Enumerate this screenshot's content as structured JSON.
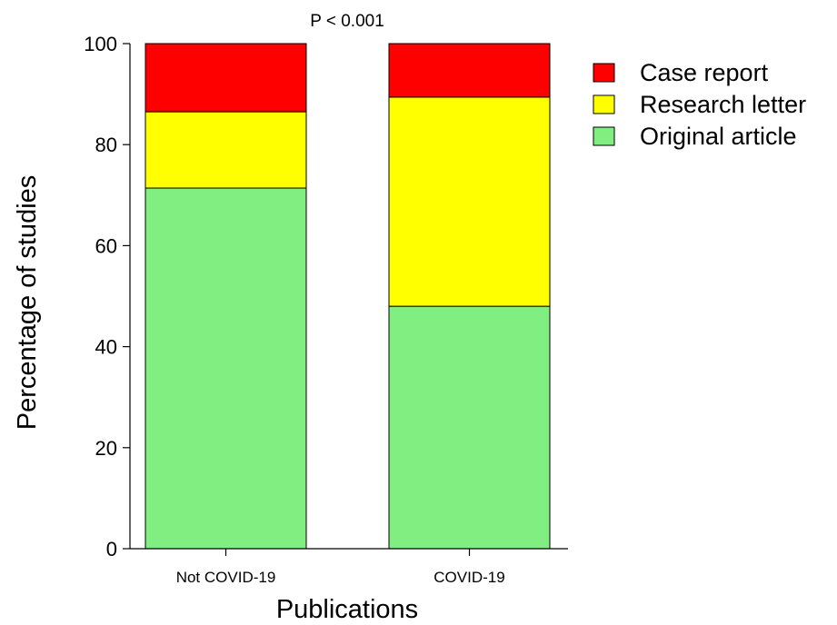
{
  "chart_data": {
    "type": "bar",
    "stacked": true,
    "title": "",
    "annotation": "P < 0.001",
    "xlabel": "Publications",
    "ylabel": "Percentage of studies",
    "ylim": [
      0,
      100
    ],
    "yticks": [
      0,
      20,
      40,
      60,
      80,
      100
    ],
    "grid": false,
    "legend_position": "top-right",
    "categories": [
      "Not COVID-19",
      "COVID-19"
    ],
    "series": [
      {
        "name": "Original article",
        "color": "#80ee80",
        "values": [
          71.4,
          48.0
        ]
      },
      {
        "name": "Research letter",
        "color": "#ffff00",
        "values": [
          15.1,
          41.4
        ]
      },
      {
        "name": "Case report",
        "color": "#ff0000",
        "values": [
          13.5,
          10.6
        ]
      }
    ],
    "legend_order": [
      "Case report",
      "Research letter",
      "Original article"
    ]
  }
}
